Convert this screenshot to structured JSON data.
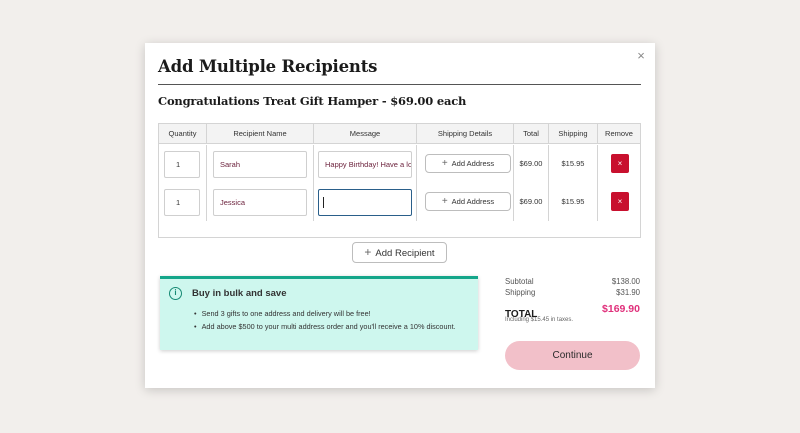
{
  "modal": {
    "title": "Add Multiple Recipients",
    "close_label": "×",
    "product_line": "Congratulations Treat Gift Hamper - $69.00 each"
  },
  "table": {
    "headers": {
      "quantity": "Quantity",
      "recipient": "Recipient Name",
      "message": "Message",
      "shipping_details": "Shipping Details",
      "total": "Total",
      "shipping": "Shipping",
      "remove": "Remove"
    },
    "rows": [
      {
        "quantity": "1",
        "name": "Sarah",
        "message": "Happy Birthday! Have a lov",
        "address_button": "Add Address",
        "total": "$69.00",
        "shipping": "$15.95",
        "remove_label": "×"
      },
      {
        "quantity": "1",
        "name": "Jessica",
        "message": "",
        "address_button": "Add Address",
        "total": "$69.00",
        "shipping": "$15.95",
        "remove_label": "×"
      }
    ]
  },
  "add_recipient_label": "Add Recipient",
  "promo": {
    "icon": "info-icon",
    "title": "Buy in bulk and save",
    "points": [
      "Send 3 gifts to one address and delivery will be free!",
      "Add above $500 to your multi address order and you'll receive a 10% discount."
    ]
  },
  "summary": {
    "subtotal_label": "Subtotal",
    "subtotal_value": "$138.00",
    "shipping_label": "Shipping",
    "shipping_value": "$31.90",
    "total_label": "TOTAL",
    "total_value": "$169.90",
    "tax_note": "Including $15.45 in taxes."
  },
  "continue_label": "Continue",
  "colors": {
    "accent_pink": "#e0307b",
    "remove_red": "#c8102e",
    "promo_bg": "#cef7ee",
    "promo_border": "#14a68a",
    "continue_bg": "#f2c0c9"
  }
}
